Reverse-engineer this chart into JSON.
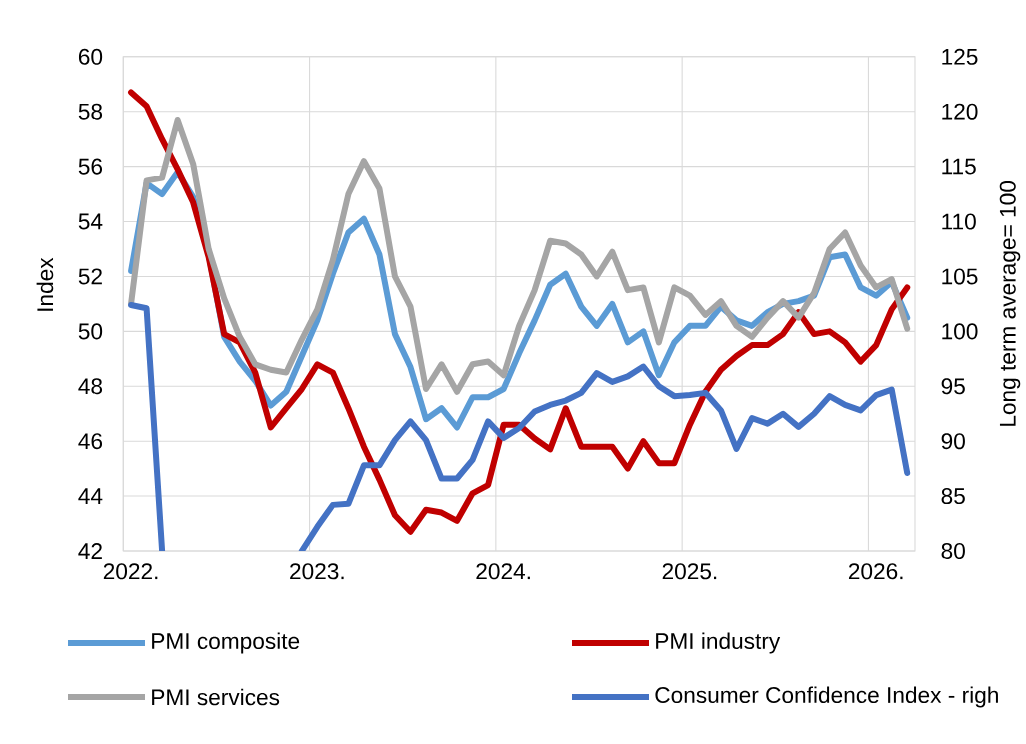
{
  "chart_data": {
    "type": "line",
    "ylabel": "Index",
    "y2label": "Long term average= 100",
    "categories": [
      "2022.",
      null,
      null,
      null,
      null,
      null,
      null,
      null,
      null,
      null,
      null,
      null,
      "2023.",
      null,
      null,
      null,
      null,
      null,
      null,
      null,
      null,
      null,
      null,
      null,
      "2024.",
      null,
      null,
      null,
      null,
      null,
      null,
      null,
      null,
      null,
      null,
      null,
      "2025.",
      null,
      null,
      null,
      null,
      null,
      null,
      null,
      null,
      null,
      null,
      null,
      "2026.",
      null,
      null
    ],
    "series": [
      {
        "name": "PMI composite",
        "color": "#5b9bd5",
        "values": [
          52.2,
          55.4,
          55.0,
          55.8,
          54.9,
          52.8,
          49.8,
          48.9,
          48.2,
          47.3,
          47.8,
          49.1,
          50.4,
          52.1,
          53.6,
          54.1,
          52.8,
          49.9,
          48.7,
          46.8,
          47.2,
          46.5,
          47.6,
          47.6,
          47.9,
          49.2,
          50.4,
          51.7,
          52.1,
          50.9,
          50.2,
          51.0,
          49.6,
          50.0,
          48.4,
          49.6,
          50.2,
          50.2,
          50.9,
          50.4,
          50.2,
          50.7,
          51.0,
          51.1,
          51.3,
          52.7,
          52.8,
          51.6,
          51.3,
          51.8,
          50.5
        ]
      },
      {
        "name": "PMI industry",
        "color": "#c00000",
        "values": [
          58.7,
          58.2,
          57.0,
          55.9,
          54.7,
          52.7,
          49.9,
          49.6,
          48.5,
          46.5,
          47.2,
          47.9,
          48.8,
          48.5,
          47.2,
          45.8,
          44.6,
          43.3,
          42.7,
          43.5,
          43.4,
          43.1,
          44.1,
          44.4,
          46.6,
          46.6,
          46.1,
          45.7,
          47.2,
          45.8,
          45.8,
          45.8,
          45.0,
          46.0,
          45.2,
          45.2,
          46.6,
          47.8,
          48.6,
          49.1,
          49.5,
          49.5,
          49.9,
          50.7,
          49.9,
          50.0,
          49.6,
          48.9,
          49.5,
          50.8,
          51.6
        ]
      },
      {
        "name": "PMI services",
        "color": "#a5a5a5",
        "values": [
          51.0,
          55.5,
          55.6,
          57.7,
          56.1,
          53.0,
          51.2,
          49.8,
          48.8,
          48.6,
          48.5,
          49.7,
          50.8,
          52.6,
          55.0,
          56.2,
          55.2,
          52.0,
          50.9,
          47.9,
          48.8,
          47.8,
          48.8,
          48.9,
          48.4,
          50.2,
          51.5,
          53.3,
          53.2,
          52.8,
          52.0,
          52.9,
          51.5,
          51.6,
          49.6,
          51.6,
          51.3,
          50.6,
          51.1,
          50.2,
          49.8,
          50.5,
          51.1,
          50.5,
          51.4,
          53.0,
          53.6,
          52.4,
          51.6,
          51.9,
          50.1
        ]
      },
      {
        "name": "Consumer Confidence Index - righ",
        "color": "#4472c4",
        "axis": "y2",
        "values": [
          102.4,
          102.1,
          80,
          null,
          null,
          null,
          null,
          null,
          null,
          null,
          null,
          80,
          82.2,
          84.2,
          84.3,
          87.8,
          87.8,
          90.1,
          91.8,
          90.1,
          86.6,
          86.6,
          88.3,
          91.8,
          90.3,
          91.2,
          92.7,
          93.3,
          93.7,
          94.4,
          96.2,
          95.4,
          95.9,
          96.8,
          95.0,
          94.1,
          94.2,
          94.4,
          92.8,
          89.3,
          92.1,
          91.6,
          92.5,
          91.3,
          92.5,
          94.1,
          93.3,
          92.8,
          94.2,
          94.7,
          87.1
        ]
      }
    ],
    "ylim": [
      42,
      60
    ],
    "yticks": [
      42,
      44,
      46,
      48,
      50,
      52,
      54,
      56,
      58,
      60
    ],
    "y2lim": [
      80,
      125
    ],
    "y2ticks": [
      80,
      85,
      90,
      95,
      100,
      105,
      110,
      115,
      120,
      125
    ],
    "grid": true,
    "legend": "bottom"
  }
}
